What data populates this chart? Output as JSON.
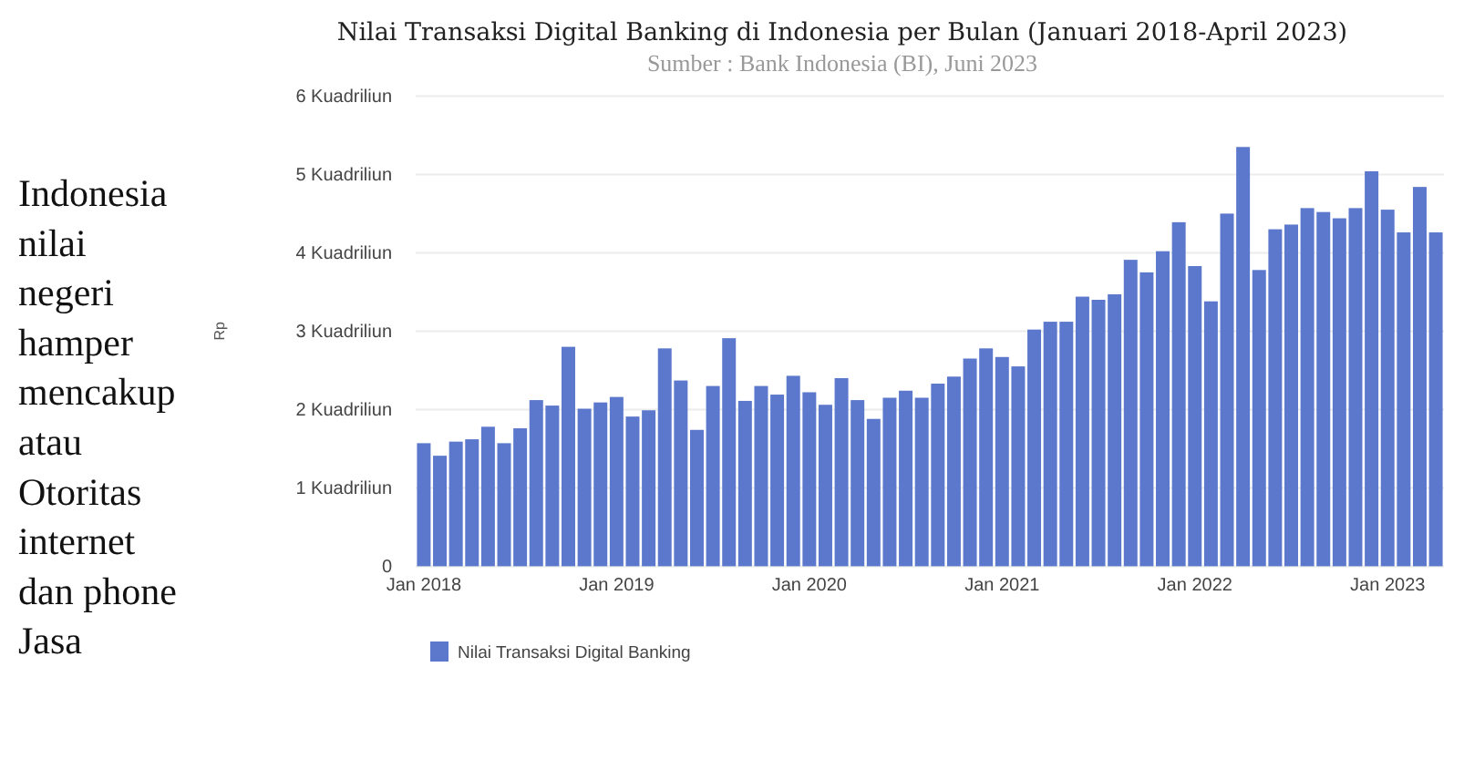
{
  "chart_data": {
    "type": "bar",
    "title": "Nilai Transaksi Digital Banking di Indonesia per Bulan (Januari 2018-April 2023)",
    "subtitle": "Sumber : Bank Indonesia (BI), Juni 2023",
    "ylabel": "Rp",
    "categories": [
      "Jan 2018",
      null,
      null,
      null,
      null,
      null,
      null,
      null,
      null,
      null,
      null,
      null,
      "Jan 2019",
      null,
      null,
      null,
      null,
      null,
      null,
      null,
      null,
      null,
      null,
      null,
      "Jan 2020",
      null,
      null,
      null,
      null,
      null,
      null,
      null,
      null,
      null,
      null,
      null,
      "Jan 2021",
      null,
      null,
      null,
      null,
      null,
      null,
      null,
      null,
      null,
      null,
      null,
      "Jan 2022",
      null,
      null,
      null,
      null,
      null,
      null,
      null,
      null,
      null,
      null,
      null,
      "Jan 2023",
      null,
      null,
      null
    ],
    "series": [
      {
        "name": "Nilai Transaksi Digital Banking",
        "color": "#5b78cc",
        "values": [
          1.57,
          1.41,
          1.59,
          1.62,
          1.78,
          1.57,
          1.76,
          2.12,
          2.05,
          2.8,
          2.01,
          2.09,
          2.16,
          1.91,
          1.99,
          2.78,
          2.37,
          1.74,
          2.3,
          2.91,
          2.11,
          2.3,
          2.19,
          2.43,
          2.22,
          2.06,
          2.4,
          2.12,
          1.88,
          2.15,
          2.24,
          2.15,
          2.33,
          2.42,
          2.65,
          2.78,
          2.67,
          2.55,
          3.02,
          3.12,
          3.12,
          3.44,
          3.4,
          3.47,
          3.91,
          3.75,
          4.02,
          4.39,
          3.83,
          3.38,
          4.5,
          5.35,
          3.78,
          4.3,
          4.36,
          4.57,
          4.52,
          4.44,
          4.57,
          5.04,
          4.55,
          4.26,
          4.84,
          4.26
        ]
      }
    ],
    "ylim": [
      0,
      6
    ],
    "yticks": [
      0,
      {
        "value": 1,
        "label": "1 Kuadriliun"
      },
      {
        "value": 2,
        "label": "2 Kuadriliun"
      },
      {
        "value": 3,
        "label": "3 Kuadriliun"
      },
      {
        "value": 4,
        "label": "4 Kuadriliun"
      },
      {
        "value": 5,
        "label": "5 Kuadriliun"
      },
      {
        "value": 6,
        "label": "6 Kuadriliun"
      }
    ],
    "grid": "y",
    "legend": "bottom left",
    "annotations": [
      "Indonesia",
      "nilai",
      "negeri",
      "hamper",
      "mencakup",
      "atau",
      "Otoritas",
      "internet",
      "dan phone",
      "Jasa"
    ]
  }
}
